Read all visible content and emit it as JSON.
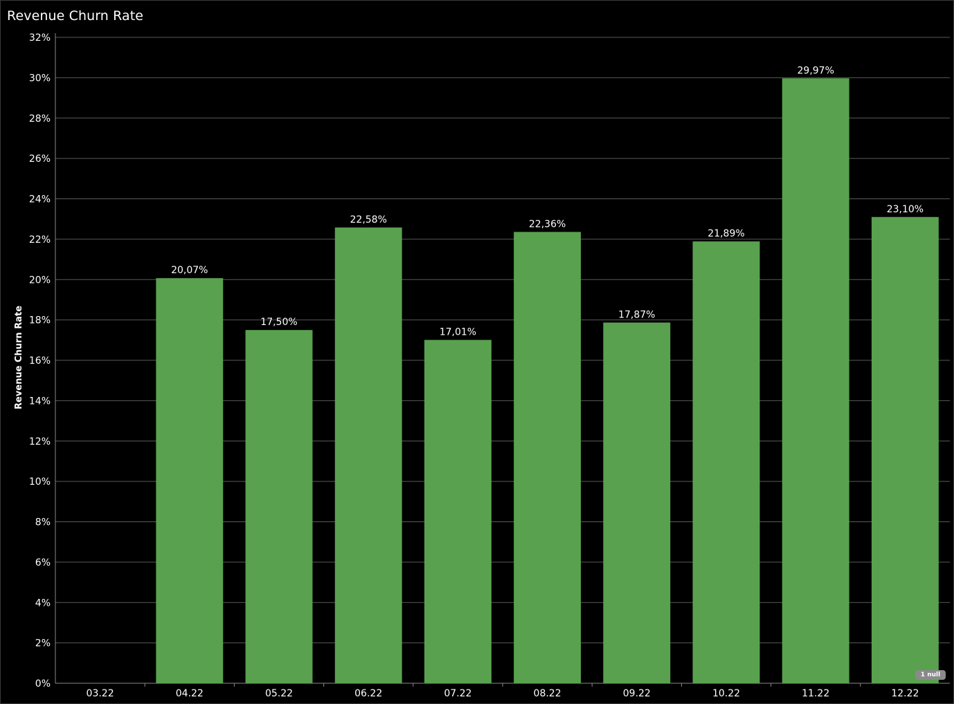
{
  "header": {
    "title": "Revenue Churn Rate"
  },
  "colors": {
    "background": "#000000",
    "bar": "#59a14f",
    "grid": "#5a5a5a",
    "text": "#ffffff"
  },
  "null_indicator": {
    "label": "1 null"
  },
  "chart_data": {
    "type": "bar",
    "title": "Revenue Churn Rate",
    "xlabel": "",
    "ylabel": "Revenue Churn Rate",
    "categories": [
      "03.22",
      "04.22",
      "05.22",
      "06.22",
      "07.22",
      "08.22",
      "09.22",
      "10.22",
      "11.22",
      "12.22"
    ],
    "values": [
      null,
      20.07,
      17.5,
      22.58,
      17.01,
      22.36,
      17.87,
      21.89,
      29.97,
      23.1
    ],
    "value_labels": [
      "",
      "20,07%",
      "17,50%",
      "22,58%",
      "17,01%",
      "22,36%",
      "17,87%",
      "21,89%",
      "29,97%",
      "23,10%"
    ],
    "ylim": [
      0,
      32
    ],
    "yticks": [
      0,
      2,
      4,
      6,
      8,
      10,
      12,
      14,
      16,
      18,
      20,
      22,
      24,
      26,
      28,
      30,
      32
    ],
    "ytick_labels": [
      "0%",
      "2%",
      "4%",
      "6%",
      "8%",
      "10%",
      "12%",
      "14%",
      "16%",
      "18%",
      "20%",
      "22%",
      "24%",
      "26%",
      "28%",
      "30%",
      "32%"
    ],
    "grid": true,
    "legend": "none"
  }
}
